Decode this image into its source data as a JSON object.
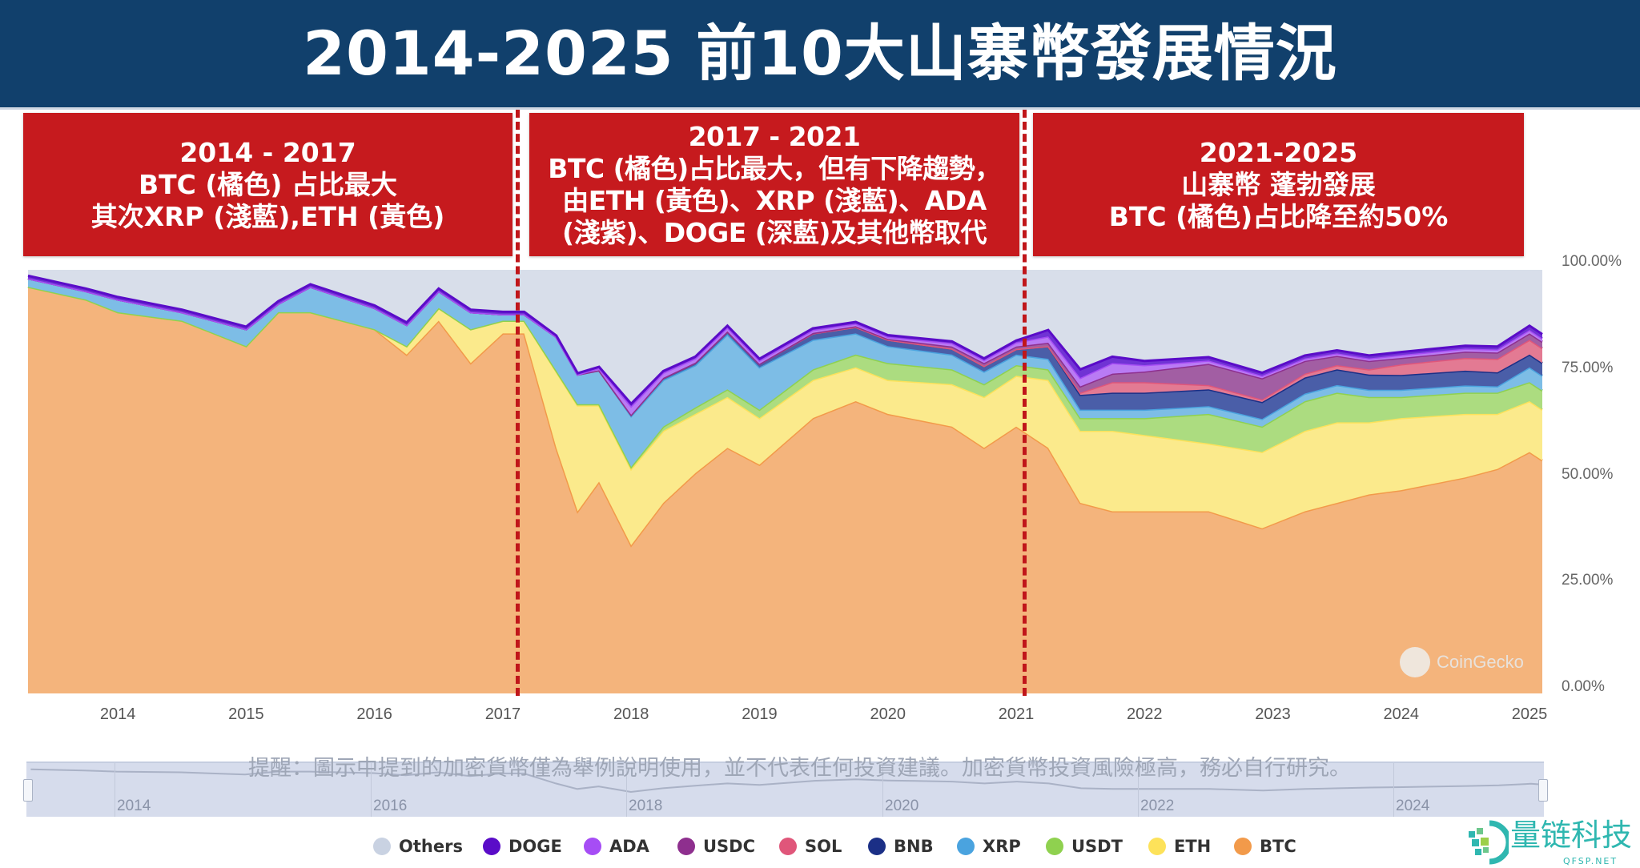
{
  "title": "2014-2025 前10大山寨幣發展情況",
  "periods": [
    {
      "lines": [
        "2014 - 2017",
        "BTC (橘色) 占比最大",
        "其次XRP (淺藍),ETH (黃色)"
      ]
    },
    {
      "lines": [
        "2017 - 2021",
        "BTC (橘色)占比最大，但有下降趨勢，",
        "由ETH (黃色)、XRP (淺藍)、ADA",
        "(淺紫)、DOGE (深藍)及其他幣取代"
      ]
    },
    {
      "lines": [
        "2021-2025",
        "山寨幣 蓬勃發展",
        "BTC (橘色)占比降至約50%"
      ]
    }
  ],
  "disclaimer": "提醒：圖示中提到的加密貨幣僅為舉例說明使用，並不代表任何投資建議。加密貨幣投資風險極高，務必自行研究。",
  "watermark": "CoinGecko",
  "logo": {
    "name": "量链科技",
    "url_text": "QFSP.NET"
  },
  "navigator": {
    "labels": [
      "2014",
      "2016",
      "2018",
      "2020",
      "2022",
      "2024"
    ]
  },
  "chart_data": {
    "type": "area",
    "stacked": true,
    "normalized": true,
    "title": "",
    "xlabel": "",
    "ylabel": "",
    "ylim": [
      0,
      100
    ],
    "y_ticks": [
      "0.00%",
      "25.00%",
      "50.00%",
      "75.00%",
      "100.00%"
    ],
    "x_ticks": [
      "2014",
      "2015",
      "2016",
      "2017",
      "2018",
      "2019",
      "2020",
      "2021",
      "2022",
      "2023",
      "2024",
      "2025"
    ],
    "grid": false,
    "legend_position": "bottom",
    "x": [
      "2013-05",
      "2013-10",
      "2014-01",
      "2014-07",
      "2015-01",
      "2015-04",
      "2015-07",
      "2016-01",
      "2016-04",
      "2016-07",
      "2016-10",
      "2017-01",
      "2017-03",
      "2017-06",
      "2017-08",
      "2017-10",
      "2018-01",
      "2018-04",
      "2018-07",
      "2018-10",
      "2019-01",
      "2019-06",
      "2019-10",
      "2020-01",
      "2020-07",
      "2020-10",
      "2021-01",
      "2021-04",
      "2021-07",
      "2021-10",
      "2022-01",
      "2022-07",
      "2022-12",
      "2023-04",
      "2023-07",
      "2023-10",
      "2024-01",
      "2024-07",
      "2024-10",
      "2025-01",
      "2025-02"
    ],
    "series": [
      {
        "name": "BTC",
        "color": "#f29a4a",
        "fill": "#f4b47c",
        "values": [
          96,
          93,
          90,
          88,
          82,
          90,
          90,
          86,
          80,
          88,
          78,
          85,
          85,
          58,
          43,
          50,
          35,
          45,
          52,
          58,
          54,
          65,
          69,
          66,
          63,
          58,
          63,
          58,
          45,
          43,
          43,
          43,
          39,
          43,
          45,
          47,
          48,
          51,
          53,
          57,
          55
        ]
      },
      {
        "name": "ETH",
        "color": "#fde25a",
        "fill": "#fbea8c",
        "values": [
          0,
          0,
          0,
          0,
          0,
          0,
          0,
          0,
          2,
          3,
          8,
          3,
          3,
          18,
          25,
          18,
          18,
          17,
          14,
          12,
          11,
          9,
          8,
          8,
          10,
          12,
          12,
          16,
          17,
          19,
          18,
          16,
          18,
          19,
          19,
          17,
          17,
          15,
          13,
          12,
          12
        ]
      },
      {
        "name": "USDT",
        "color": "#8fd14f",
        "fill": "#acdc80",
        "values": [
          0,
          0,
          0,
          0,
          0,
          0,
          0,
          0,
          0,
          0,
          0,
          0,
          0,
          0.2,
          0.3,
          0.3,
          0.5,
          1,
          1.5,
          1.8,
          2,
          2.5,
          3,
          4,
          3.5,
          3,
          2.5,
          2.5,
          3,
          3,
          4,
          7,
          6,
          7,
          7,
          6,
          5,
          5,
          5,
          4.5,
          4.5
        ]
      },
      {
        "name": "XRP",
        "color": "#4aa3df",
        "fill": "#7dbde6",
        "values": [
          2,
          2,
          3,
          2,
          4,
          2,
          6,
          5,
          5,
          4,
          4,
          1.5,
          1.5,
          8,
          7,
          8,
          12,
          11,
          10,
          13,
          10,
          7,
          5,
          4,
          3.5,
          3,
          2.5,
          2.5,
          2,
          2,
          2,
          1.8,
          1.8,
          1.8,
          1.8,
          1.7,
          1.7,
          1.7,
          1.5,
          3.5,
          3.5
        ]
      },
      {
        "name": "BNB",
        "color": "#1b2f86",
        "fill": "#4a5ea8",
        "values": [
          0,
          0,
          0,
          0,
          0,
          0,
          0,
          0,
          0,
          0,
          0,
          0,
          0,
          0,
          0,
          0,
          0.3,
          0.5,
          0.6,
          0.7,
          0.8,
          1.5,
          1.5,
          1.5,
          1.4,
          1.3,
          1.3,
          3,
          3.5,
          4,
          4,
          4,
          4,
          3.8,
          3.7,
          3.6,
          3.5,
          3.5,
          3.3,
          3,
          3
        ]
      },
      {
        "name": "SOL",
        "color": "#e0567a",
        "fill": "#e37a93",
        "values": [
          0,
          0,
          0,
          0,
          0,
          0,
          0,
          0,
          0,
          0,
          0,
          0,
          0,
          0,
          0,
          0,
          0,
          0,
          0,
          0,
          0,
          0,
          0,
          0,
          0,
          0,
          0,
          0,
          0.5,
          2.5,
          2.5,
          1,
          0.6,
          0.9,
          1,
          1.2,
          2.5,
          3,
          3.2,
          3.5,
          3.5
        ]
      },
      {
        "name": "USDC",
        "color": "#8e2f8e",
        "fill": "#a25ea3",
        "values": [
          0,
          0,
          0,
          0,
          0,
          0,
          0,
          0,
          0,
          0,
          0,
          0,
          0,
          0,
          0,
          0,
          0,
          0,
          0,
          0,
          0,
          0.1,
          0.2,
          0.2,
          0.5,
          0.7,
          0.6,
          0.8,
          1.5,
          2,
          2.5,
          5,
          5,
          3,
          2.2,
          2,
          1.5,
          1.5,
          1.5,
          1.5,
          1.5
        ]
      },
      {
        "name": "ADA",
        "color": "#a64df5",
        "fill": "#b97bf4",
        "values": [
          0,
          0,
          0,
          0,
          0,
          0,
          0,
          0,
          0,
          0,
          0,
          0,
          0,
          0,
          0,
          0.5,
          2,
          1.2,
          1,
          0.9,
          0.8,
          0.7,
          0.6,
          0.5,
          0.8,
          0.7,
          1,
          1.5,
          2,
          2.5,
          1.5,
          0.8,
          0.6,
          0.6,
          0.6,
          0.6,
          0.7,
          0.7,
          0.7,
          0.8,
          0.8
        ]
      },
      {
        "name": "DOGE",
        "color": "#5a0cc8",
        "fill": "#7033d4",
        "values": [
          0.6,
          0.6,
          0.6,
          0.6,
          0.6,
          0.6,
          0.6,
          0.6,
          0.6,
          0.6,
          0.6,
          0.6,
          0.6,
          0.3,
          0.3,
          0.3,
          0.6,
          0.4,
          0.4,
          0.4,
          0.4,
          0.4,
          0.4,
          0.4,
          0.4,
          0.4,
          0.4,
          1.5,
          2,
          1.5,
          1,
          0.8,
          0.7,
          0.7,
          0.7,
          0.7,
          0.7,
          0.7,
          0.7,
          1,
          1
        ]
      },
      {
        "name": "Others",
        "color": "#c9d2e2",
        "fill": "#d8deea",
        "values": "remainder-to-100"
      }
    ],
    "legend": [
      "Others",
      "DOGE",
      "ADA",
      "USDC",
      "SOL",
      "BNB",
      "XRP",
      "USDT",
      "ETH",
      "BTC"
    ]
  }
}
